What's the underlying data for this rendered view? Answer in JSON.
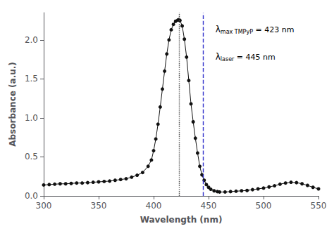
{
  "chart_data": {
    "type": "line",
    "xlabel": "Wavelength (nm)",
    "ylabel": "Absorbance (a.u.)",
    "x": [
      300,
      305,
      310,
      315,
      320,
      325,
      330,
      335,
      340,
      345,
      350,
      355,
      360,
      365,
      370,
      375,
      380,
      385,
      390,
      395,
      398,
      400,
      402,
      404,
      406,
      408,
      410,
      412,
      414,
      416,
      418,
      420,
      422,
      423,
      424,
      426,
      428,
      430,
      432,
      434,
      436,
      438,
      440,
      442,
      444,
      446,
      448,
      450,
      452,
      455,
      458,
      460,
      465,
      470,
      475,
      480,
      485,
      490,
      495,
      500,
      505,
      510,
      515,
      520,
      525,
      530,
      535,
      540,
      545,
      550
    ],
    "values": [
      0.14,
      0.145,
      0.15,
      0.155,
      0.155,
      0.16,
      0.165,
      0.165,
      0.17,
      0.175,
      0.18,
      0.185,
      0.19,
      0.2,
      0.21,
      0.22,
      0.24,
      0.265,
      0.3,
      0.38,
      0.46,
      0.58,
      0.73,
      0.92,
      1.14,
      1.37,
      1.6,
      1.82,
      2.0,
      2.13,
      2.2,
      2.24,
      2.255,
      2.26,
      2.25,
      2.18,
      2.01,
      1.78,
      1.48,
      1.18,
      0.95,
      0.74,
      0.55,
      0.38,
      0.27,
      0.2,
      0.145,
      0.11,
      0.085,
      0.065,
      0.055,
      0.05,
      0.05,
      0.055,
      0.06,
      0.065,
      0.07,
      0.08,
      0.09,
      0.1,
      0.115,
      0.13,
      0.15,
      0.165,
      0.175,
      0.17,
      0.155,
      0.135,
      0.11,
      0.09
    ],
    "color": "#111111",
    "marker": "circle",
    "xlim": [
      300,
      550
    ],
    "ylim": [
      0,
      2.35
    ],
    "xticks": [
      300,
      350,
      400,
      450,
      500,
      550
    ],
    "yticks": [
      {
        "value": 0,
        "label": "0.0"
      },
      0.5,
      {
        "value": 1.0,
        "label": "1.0"
      },
      1.5,
      {
        "value": 2.0,
        "label": "2.0"
      }
    ],
    "grid": false,
    "vlines": [
      {
        "x": 423,
        "color": "#555555",
        "line_style": "dotted"
      },
      {
        "x": 445,
        "color": "#3333cc",
        "line_style": "dashed"
      }
    ],
    "annotations": [
      {
        "symbol": "λ",
        "subscript": "max TMPyP",
        "text": "= 423 nm"
      },
      {
        "symbol": "λ",
        "subscript": "laser",
        "text": "= 445 nm"
      }
    ]
  }
}
